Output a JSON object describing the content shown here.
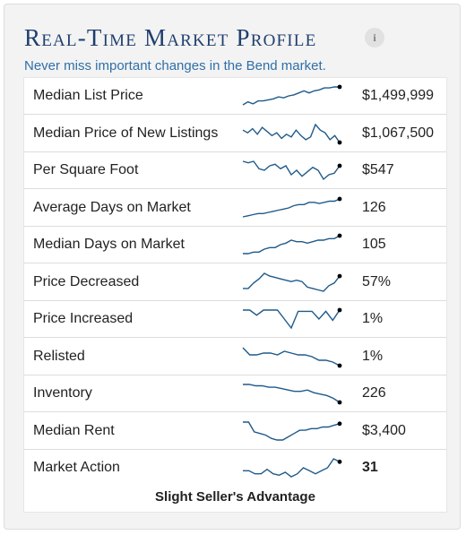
{
  "header": {
    "title": "Real-Time Market Profile",
    "subtitle": "Never miss important changes in the Bend market."
  },
  "colors": {
    "title": "#1f3f6e",
    "subtitle": "#2f6fa8",
    "sparkline": "#1f5a8a",
    "marker": "#000000"
  },
  "metrics": [
    {
      "label": "Median List Price",
      "value": "$1,499,999",
      "trend": [
        4,
        7,
        5,
        8,
        8,
        9,
        10,
        12,
        11,
        13,
        14,
        16,
        18,
        16,
        18,
        19,
        21,
        21,
        22,
        22
      ]
    },
    {
      "label": "Median Price of New Listings",
      "value": "$1,067,500",
      "trend": [
        14,
        12,
        15,
        11,
        16,
        13,
        10,
        12,
        8,
        11,
        9,
        14,
        10,
        7,
        9,
        18,
        14,
        12,
        7,
        10,
        5
      ]
    },
    {
      "label": "Per Square Foot",
      "value": "$547",
      "trend": [
        22,
        21,
        22,
        17,
        16,
        19,
        20,
        17,
        19,
        13,
        16,
        12,
        15,
        18,
        16,
        10,
        13,
        14,
        19
      ]
    },
    {
      "label": "Average Days on Market",
      "value": "126",
      "trend": [
        4,
        5,
        6,
        7,
        7,
        8,
        9,
        10,
        11,
        12,
        14,
        15,
        15,
        17,
        17,
        16,
        17,
        18,
        18,
        20
      ]
    },
    {
      "label": "Median Days on Market",
      "value": "105",
      "trend": [
        3,
        3,
        4,
        4,
        6,
        7,
        7,
        9,
        10,
        12,
        11,
        11,
        10,
        11,
        12,
        12,
        13,
        13,
        15
      ]
    },
    {
      "label": "Price Decreased",
      "value": "57%",
      "trend": [
        7,
        7,
        11,
        14,
        18,
        16,
        15,
        14,
        13,
        12,
        13,
        12,
        8,
        7,
        6,
        5,
        9,
        11,
        16
      ]
    },
    {
      "label": "Price Increased",
      "value": "1%",
      "trend": [
        15,
        15,
        11,
        15,
        15,
        15,
        8,
        1,
        14,
        14,
        14,
        8,
        14,
        7,
        15
      ]
    },
    {
      "label": "Relisted",
      "value": "1%",
      "trend": [
        18,
        14,
        14,
        15,
        15,
        14,
        16,
        15,
        14,
        14,
        13,
        11,
        11,
        10,
        8
      ]
    },
    {
      "label": "Inventory",
      "value": "226",
      "trend": [
        16,
        16,
        15,
        15,
        14,
        14,
        13,
        12,
        11,
        11,
        12,
        10,
        9,
        8,
        6,
        3
      ]
    },
    {
      "label": "Median Rent",
      "value": "$3,400",
      "trend": [
        14,
        14,
        8,
        7,
        6,
        4,
        3,
        3,
        5,
        7,
        9,
        9,
        10,
        10,
        11,
        11,
        12,
        13
      ]
    },
    {
      "label": "Market Action",
      "value": "31",
      "trend": [
        8,
        8,
        6,
        6,
        9,
        6,
        5,
        7,
        4,
        6,
        10,
        8,
        6,
        8,
        10,
        16,
        14
      ]
    }
  ],
  "market_action_summary": "Slight Seller's Advantage"
}
